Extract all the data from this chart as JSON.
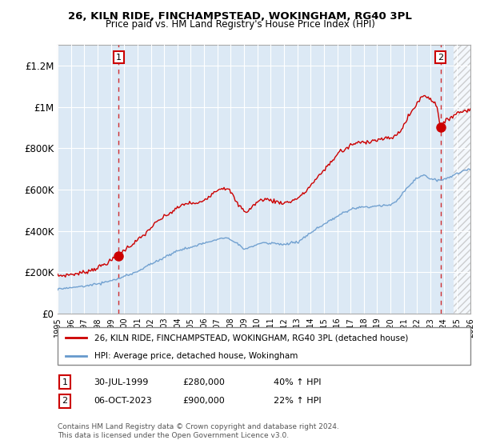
{
  "title": "26, KILN RIDE, FINCHAMPSTEAD, WOKINGHAM, RG40 3PL",
  "subtitle": "Price paid vs. HM Land Registry's House Price Index (HPI)",
  "ylim": [
    0,
    1300000
  ],
  "xlim_start": 1995.0,
  "xlim_end": 2026.0,
  "yticks": [
    0,
    200000,
    400000,
    600000,
    800000,
    1000000,
    1200000
  ],
  "ytick_labels": [
    "£0",
    "£200K",
    "£400K",
    "£600K",
    "£800K",
    "£1M",
    "£1.2M"
  ],
  "bg_color": "#dce9f5",
  "hatch_start": 2024.75,
  "marker1_x": 1999.58,
  "marker1_y": 280000,
  "marker2_x": 2023.75,
  "marker2_y": 900000,
  "note1_date": "30-JUL-1999",
  "note1_price": "£280,000",
  "note1_hpi": "40% ↑ HPI",
  "note2_date": "06-OCT-2023",
  "note2_price": "£900,000",
  "note2_hpi": "22% ↑ HPI",
  "legend_line1": "26, KILN RIDE, FINCHAMPSTEAD, WOKINGHAM, RG40 3PL (detached house)",
  "legend_line2": "HPI: Average price, detached house, Wokingham",
  "footer": "Contains HM Land Registry data © Crown copyright and database right 2024.\nThis data is licensed under the Open Government Licence v3.0.",
  "red_color": "#cc0000",
  "blue_color": "#6699cc"
}
